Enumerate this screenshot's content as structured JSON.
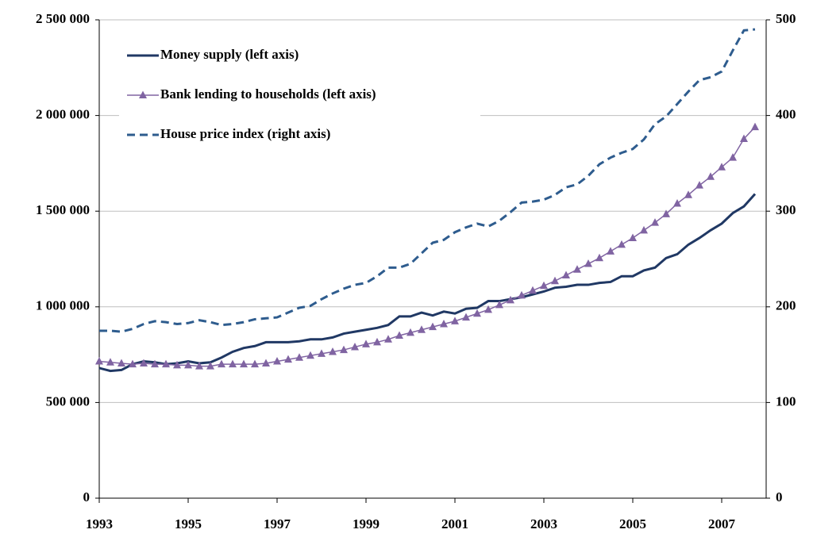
{
  "chart_data": {
    "type": "line",
    "x": [
      1993,
      1993.25,
      1993.5,
      1993.75,
      1994,
      1994.25,
      1994.5,
      1994.75,
      1995,
      1995.25,
      1995.5,
      1995.75,
      1996,
      1996.25,
      1996.5,
      1996.75,
      1997,
      1997.25,
      1997.5,
      1997.75,
      1998,
      1998.25,
      1998.5,
      1998.75,
      1999,
      1999.25,
      1999.5,
      1999.75,
      2000,
      2000.25,
      2000.5,
      2000.75,
      2001,
      2001.25,
      2001.5,
      2001.75,
      2002,
      2002.25,
      2002.5,
      2002.75,
      2003,
      2003.25,
      2003.5,
      2003.75,
      2004,
      2004.25,
      2004.5,
      2004.75,
      2005,
      2005.25,
      2005.5,
      2005.75,
      2006,
      2006.25,
      2006.5,
      2006.75,
      2007,
      2007.25,
      2007.5,
      2007.75
    ],
    "xlim": [
      1993,
      2008
    ],
    "xticks": [
      1993,
      1995,
      1997,
      1999,
      2001,
      2003,
      2005,
      2007
    ],
    "ylim": [
      0,
      2500000
    ],
    "yticks": [
      0,
      {
        "value": 500000,
        "label": "500 000"
      },
      {
        "value": 1000000,
        "label": "1 000 000"
      },
      {
        "value": 1500000,
        "label": "1 500 000"
      },
      {
        "value": 2000000,
        "label": "2 000 000"
      },
      {
        "value": 2500000,
        "label": "2 500 000"
      }
    ],
    "y2lim": [
      0,
      500
    ],
    "y2ticks": [
      0,
      100,
      200,
      300,
      400,
      500
    ],
    "grid": true,
    "legend": "top-left",
    "series": [
      {
        "name": "Money supply (left axis)",
        "color": "#203864",
        "style": "solid",
        "values": [
          680000,
          665000,
          670000,
          700000,
          715000,
          710000,
          700000,
          705000,
          715000,
          705000,
          710000,
          735000,
          765000,
          785000,
          795000,
          815000,
          815000,
          815000,
          820000,
          830000,
          830000,
          840000,
          860000,
          870000,
          880000,
          890000,
          905000,
          950000,
          950000,
          970000,
          955000,
          975000,
          965000,
          990000,
          995000,
          1030000,
          1030000,
          1040000,
          1050000,
          1065000,
          1080000,
          1100000,
          1105000,
          1115000,
          1115000,
          1125000,
          1130000,
          1160000,
          1160000,
          1190000,
          1205000,
          1255000,
          1275000,
          1325000,
          1360000,
          1400000,
          1435000,
          1490000,
          1525000,
          1590000
        ]
      },
      {
        "name": "Bank lending to households (left axis)",
        "color": "#8064a2",
        "style": "markers",
        "values": [
          715000,
          710000,
          705000,
          700000,
          705000,
          700000,
          700000,
          695000,
          695000,
          690000,
          690000,
          700000,
          700000,
          700000,
          700000,
          705000,
          715000,
          725000,
          735000,
          745000,
          755000,
          765000,
          775000,
          790000,
          805000,
          815000,
          830000,
          850000,
          865000,
          880000,
          895000,
          910000,
          925000,
          945000,
          965000,
          985000,
          1010000,
          1035000,
          1060000,
          1085000,
          1110000,
          1135000,
          1165000,
          1195000,
          1225000,
          1255000,
          1290000,
          1325000,
          1360000,
          1400000,
          1440000,
          1485000,
          1540000,
          1585000,
          1635000,
          1680000,
          1730000,
          1780000,
          1878000,
          1940000
        ]
      },
      {
        "name": "House price index (right axis)",
        "color": "#2e5c8e",
        "style": "dashed",
        "axis": "y2",
        "values": [
          175,
          175,
          174,
          177,
          182,
          185,
          184,
          182,
          183,
          186,
          184,
          181,
          182,
          184,
          187,
          188,
          189,
          194,
          199,
          201,
          208,
          214,
          219,
          223,
          225,
          232,
          241,
          241,
          245,
          256,
          267,
          270,
          278,
          283,
          287,
          284,
          290,
          299,
          309,
          310,
          312,
          317,
          325,
          328,
          337,
          349,
          356,
          361,
          365,
          375,
          391,
          399,
          412,
          425,
          437,
          440,
          446,
          468,
          489,
          490
        ]
      }
    ]
  }
}
